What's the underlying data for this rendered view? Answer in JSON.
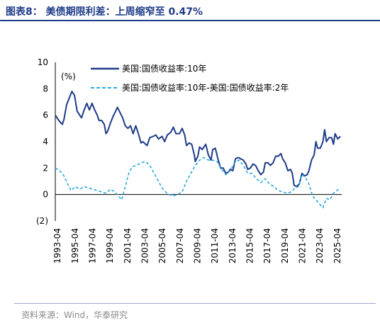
{
  "title": "图表8：  美债期限利差：上周缩窄至 0.47%",
  "source": "资料来源：Wind，华泰研究",
  "chart_data": {
    "type": "line",
    "unit_label": "(%)",
    "xlabel": "",
    "ylabel": "",
    "ylim": [
      -2,
      10
    ],
    "y_ticks": [
      -2,
      0,
      2,
      4,
      6,
      8,
      10
    ],
    "y_tick_labels": [
      "(2)",
      "0",
      "2",
      "4",
      "6",
      "8",
      "10"
    ],
    "x_tick_labels": [
      "1993-04",
      "1995-04",
      "1997-04",
      "1999-04",
      "2001-04",
      "2003-04",
      "2005-04",
      "2007-04",
      "2009-04",
      "2011-04",
      "2013-04",
      "2015-04",
      "2017-04",
      "2019-04",
      "2021-04",
      "2023-04",
      "2025-04"
    ],
    "x_range": [
      1993.0,
      2025.75
    ],
    "legend_position": "top",
    "series": [
      {
        "name": "美国:国债收益率:10年",
        "color": "#1f3c88",
        "dash": "solid",
        "x": [
          1993.0,
          1993.4,
          1993.8,
          1994.0,
          1994.3,
          1994.6,
          1994.9,
          1995.2,
          1995.5,
          1995.8,
          1996.0,
          1996.3,
          1996.6,
          1996.9,
          1997.2,
          1997.5,
          1997.8,
          1998.0,
          1998.3,
          1998.6,
          1998.8,
          1999.0,
          1999.3,
          1999.6,
          1999.9,
          2000.1,
          2000.4,
          2000.7,
          2001.0,
          2001.3,
          2001.6,
          2001.9,
          2002.2,
          2002.5,
          2002.8,
          2003.0,
          2003.5,
          2003.8,
          2004.2,
          2004.5,
          2004.8,
          2005.2,
          2005.5,
          2005.8,
          2006.2,
          2006.5,
          2006.8,
          2007.2,
          2007.5,
          2007.8,
          2008.0,
          2008.3,
          2008.6,
          2008.9,
          2009.0,
          2009.3,
          2009.5,
          2009.8,
          2010.2,
          2010.5,
          2010.8,
          2011.0,
          2011.3,
          2011.6,
          2011.9,
          2012.2,
          2012.5,
          2012.8,
          2013.0,
          2013.3,
          2013.6,
          2013.9,
          2014.2,
          2014.5,
          2014.8,
          2015.0,
          2015.3,
          2015.6,
          2015.9,
          2016.2,
          2016.5,
          2016.8,
          2017.0,
          2017.3,
          2017.6,
          2017.9,
          2018.2,
          2018.5,
          2018.8,
          2019.0,
          2019.3,
          2019.6,
          2019.9,
          2020.1,
          2020.3,
          2020.6,
          2020.9,
          2021.2,
          2021.5,
          2021.8,
          2022.0,
          2022.3,
          2022.6,
          2022.8,
          2023.0,
          2023.3,
          2023.6,
          2023.8,
          2024.0,
          2024.3,
          2024.6,
          2024.8,
          2025.0,
          2025.3,
          2025.6
        ],
        "values": [
          6.0,
          5.6,
          5.3,
          5.7,
          6.8,
          7.3,
          7.8,
          7.5,
          6.3,
          6.0,
          5.8,
          6.4,
          6.9,
          6.4,
          6.9,
          6.4,
          6.0,
          5.6,
          5.6,
          5.3,
          4.6,
          4.8,
          5.4,
          5.9,
          6.3,
          6.6,
          6.2,
          5.8,
          5.2,
          5.0,
          5.2,
          4.6,
          5.2,
          4.6,
          3.9,
          4.0,
          3.7,
          4.3,
          4.4,
          4.5,
          4.2,
          4.4,
          4.0,
          4.5,
          4.7,
          5.1,
          4.6,
          4.6,
          5.0,
          4.5,
          3.7,
          3.9,
          3.8,
          3.0,
          2.5,
          2.9,
          3.6,
          3.4,
          3.8,
          3.0,
          2.6,
          3.4,
          3.5,
          2.7,
          2.0,
          2.0,
          1.6,
          1.7,
          1.9,
          1.8,
          2.7,
          2.8,
          2.7,
          2.6,
          2.3,
          1.9,
          2.0,
          2.3,
          2.2,
          1.8,
          1.5,
          1.7,
          2.4,
          2.4,
          2.2,
          2.4,
          2.9,
          2.9,
          3.1,
          2.7,
          2.4,
          1.8,
          1.9,
          1.6,
          0.7,
          0.6,
          0.8,
          1.6,
          1.4,
          1.5,
          1.8,
          2.6,
          3.0,
          4.0,
          3.5,
          3.5,
          4.0,
          4.9,
          4.0,
          4.3,
          4.3,
          3.8,
          4.6,
          4.2,
          4.4
        ]
      },
      {
        "name": "美国:国债收益率:10年-美国:国债收益率:2年",
        "color": "#29a8e0",
        "dash": "dashed",
        "x": [
          1993.0,
          1993.5,
          1994.0,
          1994.4,
          1994.8,
          1995.3,
          1995.8,
          1996.3,
          1996.8,
          1997.3,
          1997.8,
          1998.3,
          1998.8,
          1999.3,
          1999.8,
          2000.2,
          2000.6,
          2001.0,
          2001.4,
          2001.8,
          2002.3,
          2002.8,
          2003.3,
          2003.8,
          2004.3,
          2004.8,
          2005.2,
          2005.6,
          2006.0,
          2006.5,
          2007.0,
          2007.5,
          2008.0,
          2008.5,
          2009.0,
          2009.5,
          2010.0,
          2010.5,
          2011.0,
          2011.5,
          2012.0,
          2012.5,
          2013.0,
          2013.5,
          2014.0,
          2014.5,
          2015.0,
          2015.5,
          2016.0,
          2016.5,
          2017.0,
          2017.5,
          2018.0,
          2018.5,
          2019.0,
          2019.5,
          2020.0,
          2020.4,
          2020.8,
          2021.2,
          2021.6,
          2022.0,
          2022.4,
          2022.8,
          2023.2,
          2023.6,
          2024.0,
          2024.4,
          2024.8,
          2025.2,
          2025.6
        ],
        "values": [
          2.0,
          1.8,
          1.4,
          0.8,
          0.3,
          0.6,
          0.4,
          0.6,
          0.5,
          0.4,
          0.3,
          0.2,
          0.1,
          0.4,
          0.2,
          -0.1,
          -0.4,
          0.6,
          1.6,
          2.1,
          2.2,
          2.4,
          2.5,
          2.2,
          1.6,
          1.0,
          0.5,
          0.2,
          0.0,
          -0.1,
          0.0,
          0.2,
          1.0,
          1.6,
          2.2,
          2.6,
          2.8,
          2.6,
          2.6,
          2.5,
          1.9,
          1.5,
          1.8,
          2.4,
          2.6,
          2.2,
          1.6,
          1.6,
          1.2,
          0.9,
          1.2,
          0.8,
          0.6,
          0.3,
          0.2,
          0.1,
          0.2,
          0.5,
          0.6,
          1.5,
          1.3,
          0.8,
          -0.1,
          -0.4,
          -0.7,
          -1.0,
          -0.3,
          -0.4,
          0.1,
          0.3,
          0.5
        ]
      }
    ]
  }
}
